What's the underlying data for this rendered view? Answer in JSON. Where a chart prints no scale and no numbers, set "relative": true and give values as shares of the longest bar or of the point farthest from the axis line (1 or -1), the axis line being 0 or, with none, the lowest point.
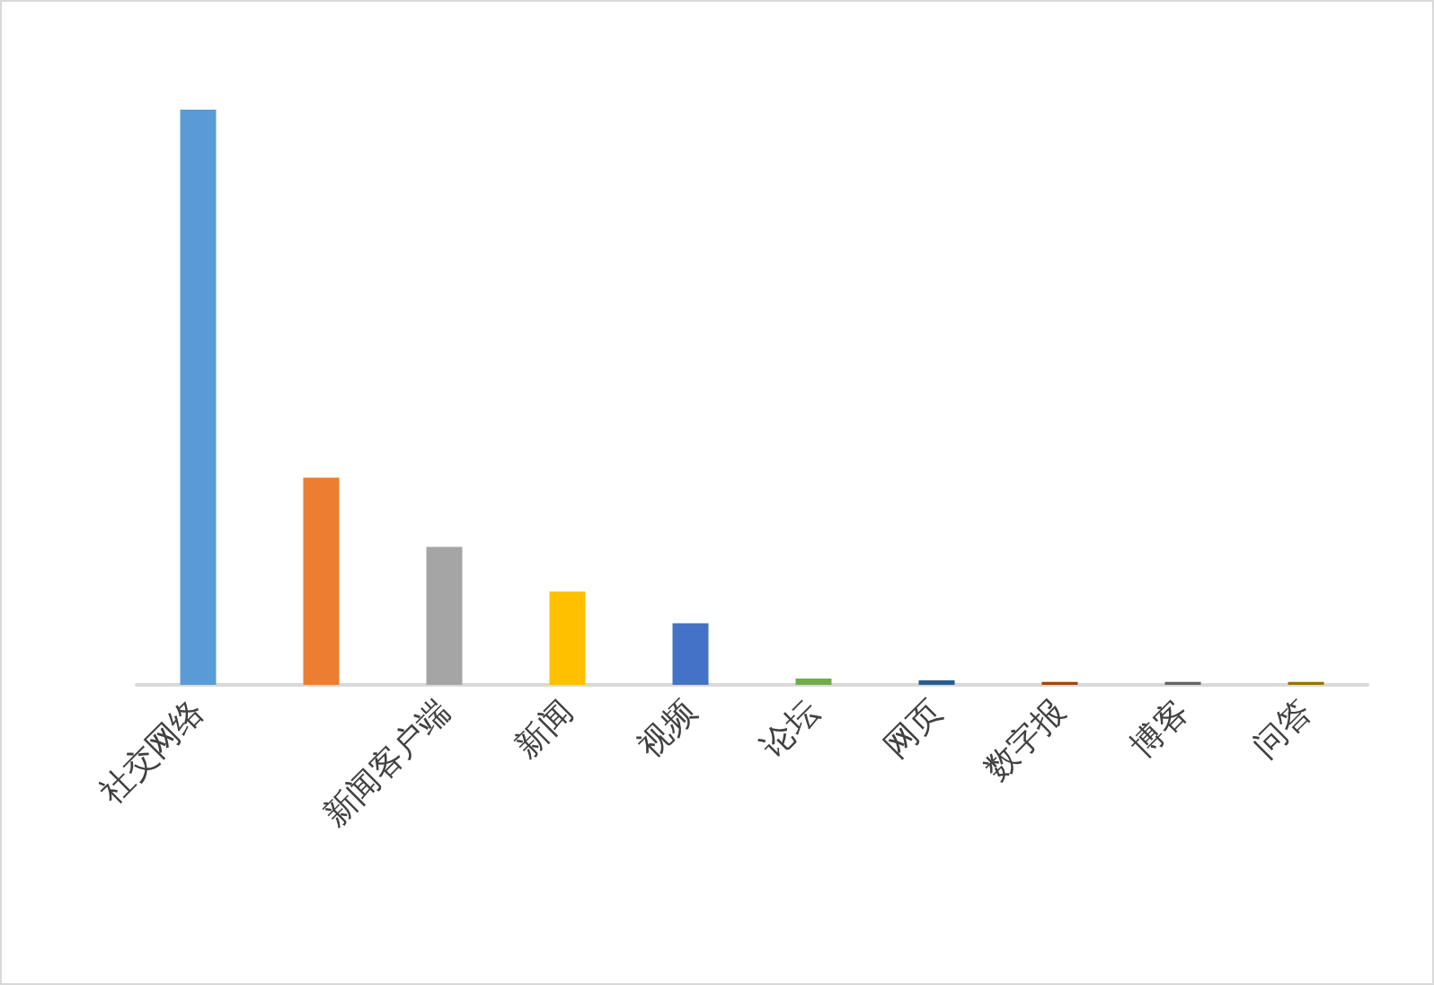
{
  "chart_data": {
    "type": "bar",
    "relative": true,
    "categories": [
      "社交网络",
      null,
      "新闻客户端",
      "新闻",
      "视频",
      "论坛",
      "网页",
      "数字报",
      "博客",
      "问答"
    ],
    "values": [
      1,
      0.36,
      0.24,
      0.162,
      0.107,
      0.011,
      0.008,
      0.005,
      0.005,
      0.005
    ],
    "colors": [
      "#5b9bd5",
      "#ed7d31",
      "#a5a5a5",
      "#ffc000",
      "#4472c4",
      "#70ad47",
      "#255e91",
      "#9e480e",
      "#636363",
      "#997300"
    ],
    "data_labels": false
  }
}
